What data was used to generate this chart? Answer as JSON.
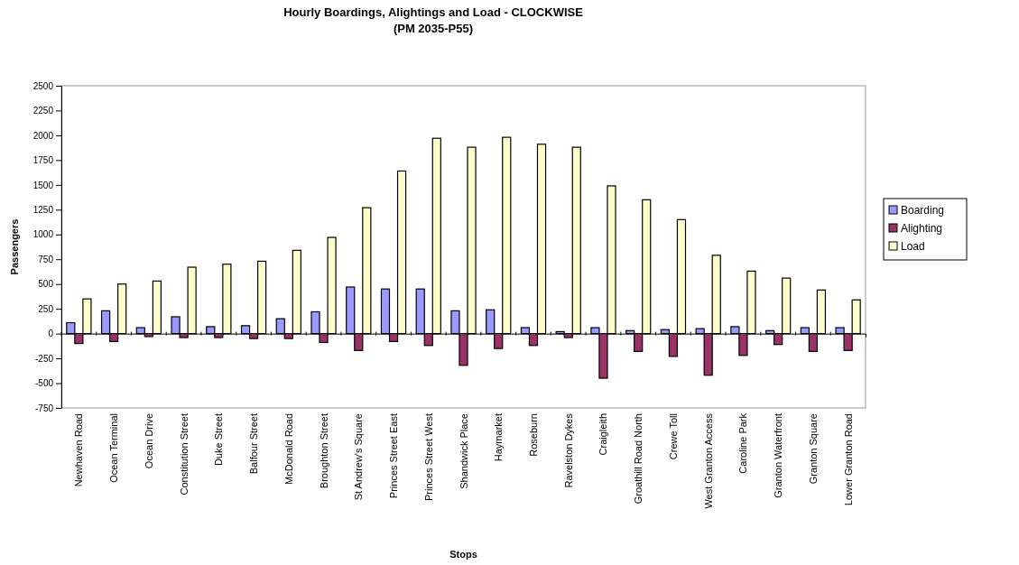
{
  "chart_data": {
    "type": "bar",
    "title": "Hourly Boardings, Alightings and Load - CLOCKWISE",
    "subtitle": "(PM 2035-P55)",
    "xlabel": "Stops",
    "ylabel": "Passengers",
    "categories": [
      "Newhaven Road",
      "Ocean Terminal",
      "Ocean Drive",
      "Constitution Street",
      "Duke Street",
      "Balfour Street",
      "McDonald Road",
      "Broughton Street",
      "St Andrew's Square",
      "Princes Street East",
      "Princes Street West",
      "Shandwick Place",
      "Haymarket",
      "Roseburn",
      "Ravelston Dykes",
      "Craigleith",
      "Groathill Road North",
      "Crewe Toll",
      "West Granton Access",
      "Caroline Park",
      "Granton Waterfront",
      "Granton Square",
      "Lower Granton Road"
    ],
    "series": [
      {
        "name": "Boarding",
        "color": "#9999ff",
        "values": [
          110,
          230,
          60,
          170,
          70,
          80,
          150,
          220,
          470,
          450,
          450,
          230,
          240,
          60,
          20,
          60,
          30,
          40,
          50,
          70,
          30,
          60,
          60
        ]
      },
      {
        "name": "Alighting",
        "color": "#993366",
        "values": [
          -100,
          -80,
          -30,
          -40,
          -40,
          -50,
          -50,
          -90,
          -170,
          -80,
          -120,
          -320,
          -150,
          -120,
          -40,
          -450,
          -180,
          -230,
          -420,
          -220,
          -110,
          -180,
          -170
        ]
      },
      {
        "name": "Load",
        "color": "#ffffcc",
        "values": [
          350,
          500,
          530,
          670,
          700,
          730,
          840,
          970,
          1270,
          1640,
          1970,
          1880,
          1980,
          1910,
          1880,
          1490,
          1350,
          1150,
          790,
          630,
          560,
          440,
          340
        ]
      }
    ],
    "ylim": [
      -750,
      2500
    ],
    "yticks": [
      -750,
      -500,
      -250,
      0,
      250,
      500,
      750,
      1000,
      1250,
      1500,
      1750,
      2000,
      2250,
      2500
    ],
    "grid": false,
    "legend": "right"
  }
}
